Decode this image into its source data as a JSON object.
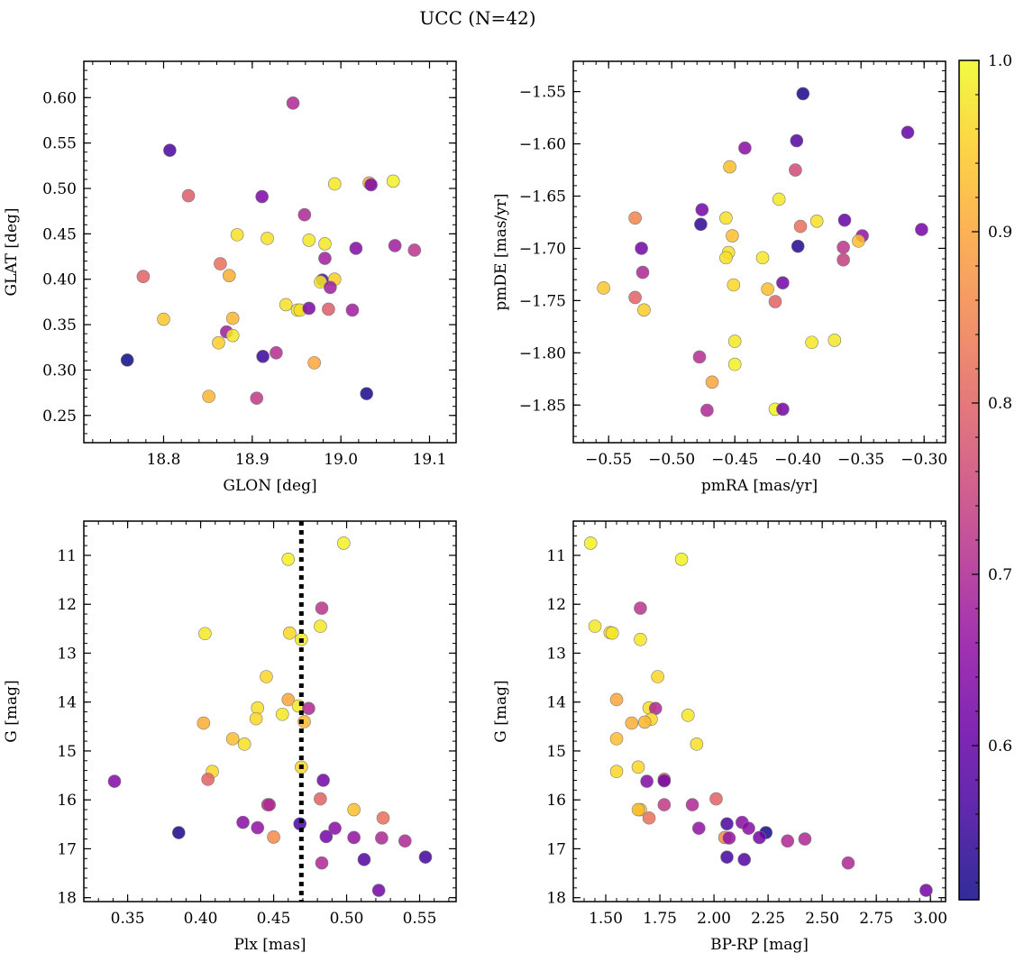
{
  "title": "UCC (N=42)",
  "colorbar": {
    "min": 0.51,
    "max": 1.0,
    "ticks": [
      0.6,
      0.7,
      0.8,
      0.9,
      1.0
    ],
    "tick_labels": [
      "0.6",
      "0.7",
      "0.8",
      "0.9",
      "1.0"
    ],
    "colormap": "plasma"
  },
  "chart_data": [
    {
      "type": "scatter",
      "xlabel": "GLON [deg]",
      "ylabel": "GLAT [deg]",
      "xlim": [
        18.71,
        19.13
      ],
      "ylim": [
        0.22,
        0.64
      ],
      "xticks": [
        18.8,
        18.9,
        19.0,
        19.1
      ],
      "xtick_labels": [
        "18.8",
        "18.9",
        "19.0",
        "19.1"
      ],
      "yticks": [
        0.25,
        0.3,
        0.35,
        0.4,
        0.45,
        0.5,
        0.55,
        0.6
      ],
      "ytick_labels": [
        "0.25",
        "0.30",
        "0.35",
        "0.40",
        "0.45",
        "0.50",
        "0.55",
        "0.60"
      ],
      "y_inverted": false,
      "vline": null,
      "points": [
        {
          "x": 18.946,
          "y": 0.594,
          "c": 0.7
        },
        {
          "x": 18.807,
          "y": 0.542,
          "c": 0.57
        },
        {
          "x": 18.828,
          "y": 0.492,
          "c": 0.79
        },
        {
          "x": 18.911,
          "y": 0.491,
          "c": 0.63
        },
        {
          "x": 18.993,
          "y": 0.505,
          "c": 0.98
        },
        {
          "x": 19.032,
          "y": 0.506,
          "c": 0.9
        },
        {
          "x": 19.034,
          "y": 0.504,
          "c": 0.63
        },
        {
          "x": 19.059,
          "y": 0.508,
          "c": 0.99
        },
        {
          "x": 18.959,
          "y": 0.471,
          "c": 0.7
        },
        {
          "x": 18.883,
          "y": 0.449,
          "c": 0.97
        },
        {
          "x": 18.917,
          "y": 0.445,
          "c": 0.97
        },
        {
          "x": 18.964,
          "y": 0.443,
          "c": 0.98
        },
        {
          "x": 18.982,
          "y": 0.439,
          "c": 0.98
        },
        {
          "x": 19.061,
          "y": 0.437,
          "c": 0.68
        },
        {
          "x": 19.083,
          "y": 0.432,
          "c": 0.72
        },
        {
          "x": 19.017,
          "y": 0.434,
          "c": 0.64
        },
        {
          "x": 18.982,
          "y": 0.423,
          "c": 0.68
        },
        {
          "x": 18.864,
          "y": 0.417,
          "c": 0.82
        },
        {
          "x": 18.777,
          "y": 0.403,
          "c": 0.8
        },
        {
          "x": 18.874,
          "y": 0.404,
          "c": 0.91
        },
        {
          "x": 18.979,
          "y": 0.399,
          "c": 0.58
        },
        {
          "x": 18.977,
          "y": 0.397,
          "c": 0.98
        },
        {
          "x": 18.993,
          "y": 0.4,
          "c": 0.95
        },
        {
          "x": 18.988,
          "y": 0.391,
          "c": 0.68
        },
        {
          "x": 18.938,
          "y": 0.372,
          "c": 0.97
        },
        {
          "x": 18.951,
          "y": 0.366,
          "c": 0.98
        },
        {
          "x": 18.954,
          "y": 0.366,
          "c": 0.97
        },
        {
          "x": 18.964,
          "y": 0.368,
          "c": 0.63
        },
        {
          "x": 18.986,
          "y": 0.367,
          "c": 0.79
        },
        {
          "x": 19.013,
          "y": 0.366,
          "c": 0.68
        },
        {
          "x": 18.8,
          "y": 0.356,
          "c": 0.94
        },
        {
          "x": 18.878,
          "y": 0.357,
          "c": 0.92
        },
        {
          "x": 18.871,
          "y": 0.342,
          "c": 0.68
        },
        {
          "x": 18.878,
          "y": 0.338,
          "c": 0.98
        },
        {
          "x": 18.862,
          "y": 0.33,
          "c": 0.95
        },
        {
          "x": 18.927,
          "y": 0.319,
          "c": 0.71
        },
        {
          "x": 18.759,
          "y": 0.311,
          "c": 0.51
        },
        {
          "x": 18.912,
          "y": 0.315,
          "c": 0.55
        },
        {
          "x": 18.97,
          "y": 0.308,
          "c": 0.9
        },
        {
          "x": 18.851,
          "y": 0.271,
          "c": 0.92
        },
        {
          "x": 18.905,
          "y": 0.269,
          "c": 0.73
        },
        {
          "x": 19.029,
          "y": 0.274,
          "c": 0.52
        }
      ]
    },
    {
      "type": "scatter",
      "xlabel": "pmRA [mas/yr]",
      "ylabel": "pmDE [mas/yr]",
      "xlim": [
        -0.578,
        -0.283
      ],
      "ylim": [
        -1.886,
        -1.521
      ],
      "xticks": [
        -0.55,
        -0.5,
        -0.45,
        -0.4,
        -0.35,
        -0.3
      ],
      "xtick_labels": [
        "−0.55",
        "−0.50",
        "−0.45",
        "−0.40",
        "−0.35",
        "−0.30"
      ],
      "yticks": [
        -1.85,
        -1.8,
        -1.75,
        -1.7,
        -1.65,
        -1.6,
        -1.55
      ],
      "ytick_labels": [
        "−1.85",
        "−1.80",
        "−1.75",
        "−1.70",
        "−1.65",
        "−1.60",
        "−1.55"
      ],
      "y_inverted": false,
      "vline": null,
      "points": [
        {
          "x": -0.396,
          "y": -1.552,
          "c": 0.52
        },
        {
          "x": -0.313,
          "y": -1.589,
          "c": 0.6
        },
        {
          "x": -0.401,
          "y": -1.597,
          "c": 0.58
        },
        {
          "x": -0.442,
          "y": -1.604,
          "c": 0.65
        },
        {
          "x": -0.454,
          "y": -1.622,
          "c": 0.93
        },
        {
          "x": -0.402,
          "y": -1.625,
          "c": 0.76
        },
        {
          "x": -0.415,
          "y": -1.653,
          "c": 0.98
        },
        {
          "x": -0.476,
          "y": -1.663,
          "c": 0.62
        },
        {
          "x": -0.529,
          "y": -1.671,
          "c": 0.85
        },
        {
          "x": -0.457,
          "y": -1.671,
          "c": 0.97
        },
        {
          "x": -0.477,
          "y": -1.677,
          "c": 0.54
        },
        {
          "x": -0.385,
          "y": -1.674,
          "c": 0.97
        },
        {
          "x": -0.363,
          "y": -1.673,
          "c": 0.6
        },
        {
          "x": -0.398,
          "y": -1.679,
          "c": 0.82
        },
        {
          "x": -0.302,
          "y": -1.682,
          "c": 0.62
        },
        {
          "x": -0.349,
          "y": -1.688,
          "c": 0.66
        },
        {
          "x": -0.352,
          "y": -1.693,
          "c": 0.93
        },
        {
          "x": -0.452,
          "y": -1.688,
          "c": 0.93
        },
        {
          "x": -0.524,
          "y": -1.7,
          "c": 0.62
        },
        {
          "x": -0.4,
          "y": -1.698,
          "c": 0.53
        },
        {
          "x": -0.364,
          "y": -1.699,
          "c": 0.72
        },
        {
          "x": -0.455,
          "y": -1.704,
          "c": 0.97
        },
        {
          "x": -0.428,
          "y": -1.709,
          "c": 0.98
        },
        {
          "x": -0.457,
          "y": -1.709,
          "c": 0.97
        },
        {
          "x": -0.364,
          "y": -1.711,
          "c": 0.74
        },
        {
          "x": -0.523,
          "y": -1.723,
          "c": 0.7
        },
        {
          "x": -0.554,
          "y": -1.738,
          "c": 0.94
        },
        {
          "x": -0.451,
          "y": -1.735,
          "c": 0.96
        },
        {
          "x": -0.412,
          "y": -1.733,
          "c": 0.62
        },
        {
          "x": -0.424,
          "y": -1.739,
          "c": 0.93
        },
        {
          "x": -0.529,
          "y": -1.747,
          "c": 0.8
        },
        {
          "x": -0.418,
          "y": -1.751,
          "c": 0.8
        },
        {
          "x": -0.522,
          "y": -1.759,
          "c": 0.95
        },
        {
          "x": -0.45,
          "y": -1.789,
          "c": 0.98
        },
        {
          "x": -0.389,
          "y": -1.79,
          "c": 0.98
        },
        {
          "x": -0.371,
          "y": -1.788,
          "c": 0.98
        },
        {
          "x": -0.478,
          "y": -1.804,
          "c": 0.71
        },
        {
          "x": -0.45,
          "y": -1.811,
          "c": 0.99
        },
        {
          "x": -0.468,
          "y": -1.828,
          "c": 0.9
        },
        {
          "x": -0.472,
          "y": -1.855,
          "c": 0.7
        },
        {
          "x": -0.418,
          "y": -1.854,
          "c": 0.99
        },
        {
          "x": -0.412,
          "y": -1.854,
          "c": 0.62
        }
      ]
    },
    {
      "type": "scatter",
      "xlabel": "Plx [mas]",
      "ylabel": "G [mag]",
      "xlim": [
        0.32,
        0.575
      ],
      "ylim": [
        18.08,
        10.3
      ],
      "xticks": [
        0.35,
        0.4,
        0.45,
        0.5,
        0.55
      ],
      "xtick_labels": [
        "0.35",
        "0.40",
        "0.45",
        "0.50",
        "0.55"
      ],
      "yticks": [
        11,
        12,
        13,
        14,
        15,
        16,
        17,
        18
      ],
      "ytick_labels": [
        "11",
        "12",
        "13",
        "14",
        "15",
        "16",
        "17",
        "18"
      ],
      "y_inverted": true,
      "vline": 0.469,
      "points": [
        {
          "x": 0.498,
          "y": 10.75,
          "c": 0.99
        },
        {
          "x": 0.46,
          "y": 11.08,
          "c": 0.99
        },
        {
          "x": 0.483,
          "y": 12.08,
          "c": 0.72
        },
        {
          "x": 0.403,
          "y": 12.6,
          "c": 0.98
        },
        {
          "x": 0.461,
          "y": 12.59,
          "c": 0.96
        },
        {
          "x": 0.469,
          "y": 12.72,
          "c": 0.98
        },
        {
          "x": 0.482,
          "y": 12.45,
          "c": 0.98
        },
        {
          "x": 0.445,
          "y": 13.48,
          "c": 0.96
        },
        {
          "x": 0.46,
          "y": 13.95,
          "c": 0.9
        },
        {
          "x": 0.467,
          "y": 14.08,
          "c": 0.98
        },
        {
          "x": 0.439,
          "y": 14.12,
          "c": 0.97
        },
        {
          "x": 0.474,
          "y": 14.13,
          "c": 0.7
        },
        {
          "x": 0.456,
          "y": 14.25,
          "c": 0.98
        },
        {
          "x": 0.438,
          "y": 14.34,
          "c": 0.96
        },
        {
          "x": 0.402,
          "y": 14.43,
          "c": 0.91
        },
        {
          "x": 0.471,
          "y": 14.4,
          "c": 0.92
        },
        {
          "x": 0.422,
          "y": 14.75,
          "c": 0.93
        },
        {
          "x": 0.43,
          "y": 14.86,
          "c": 0.97
        },
        {
          "x": 0.469,
          "y": 15.33,
          "c": 0.96
        },
        {
          "x": 0.408,
          "y": 15.42,
          "c": 0.96
        },
        {
          "x": 0.405,
          "y": 15.58,
          "c": 0.8
        },
        {
          "x": 0.341,
          "y": 15.62,
          "c": 0.64
        },
        {
          "x": 0.484,
          "y": 15.6,
          "c": 0.62
        },
        {
          "x": 0.482,
          "y": 15.98,
          "c": 0.8
        },
        {
          "x": 0.446,
          "y": 16.1,
          "c": 0.73
        },
        {
          "x": 0.505,
          "y": 16.2,
          "c": 0.93
        },
        {
          "x": 0.525,
          "y": 16.37,
          "c": 0.82
        },
        {
          "x": 0.429,
          "y": 16.46,
          "c": 0.65
        },
        {
          "x": 0.468,
          "y": 16.49,
          "c": 0.57
        },
        {
          "x": 0.439,
          "y": 16.57,
          "c": 0.66
        },
        {
          "x": 0.492,
          "y": 16.58,
          "c": 0.65
        },
        {
          "x": 0.385,
          "y": 16.67,
          "c": 0.52
        },
        {
          "x": 0.45,
          "y": 16.76,
          "c": 0.86
        },
        {
          "x": 0.486,
          "y": 16.75,
          "c": 0.62
        },
        {
          "x": 0.505,
          "y": 16.77,
          "c": 0.66
        },
        {
          "x": 0.524,
          "y": 16.78,
          "c": 0.7
        },
        {
          "x": 0.54,
          "y": 16.84,
          "c": 0.7
        },
        {
          "x": 0.554,
          "y": 17.17,
          "c": 0.56
        },
        {
          "x": 0.512,
          "y": 17.22,
          "c": 0.58
        },
        {
          "x": 0.483,
          "y": 17.29,
          "c": 0.7
        },
        {
          "x": 0.522,
          "y": 17.85,
          "c": 0.62
        },
        {
          "x": 0.447,
          "y": 16.1,
          "c": 0.7
        }
      ]
    },
    {
      "type": "scatter",
      "xlabel": "BP-RP [mag]",
      "ylabel": "G [mag]",
      "xlim": [
        1.35,
        3.07
      ],
      "ylim": [
        18.08,
        10.3
      ],
      "xticks": [
        1.5,
        1.75,
        2.0,
        2.25,
        2.5,
        2.75,
        3.0
      ],
      "xtick_labels": [
        "1.50",
        "1.75",
        "2.00",
        "2.25",
        "2.50",
        "2.75",
        "3.00"
      ],
      "yticks": [
        11,
        12,
        13,
        14,
        15,
        16,
        17,
        18
      ],
      "ytick_labels": [
        "11",
        "12",
        "13",
        "14",
        "15",
        "16",
        "17",
        "18"
      ],
      "y_inverted": true,
      "vline": null,
      "points": [
        {
          "x": 1.43,
          "y": 10.75,
          "c": 0.99
        },
        {
          "x": 1.85,
          "y": 11.08,
          "c": 0.99
        },
        {
          "x": 1.66,
          "y": 12.08,
          "c": 0.72
        },
        {
          "x": 1.45,
          "y": 12.45,
          "c": 0.98
        },
        {
          "x": 1.52,
          "y": 12.58,
          "c": 0.96
        },
        {
          "x": 1.53,
          "y": 12.59,
          "c": 0.98
        },
        {
          "x": 1.66,
          "y": 12.72,
          "c": 0.98
        },
        {
          "x": 1.74,
          "y": 13.48,
          "c": 0.96
        },
        {
          "x": 1.55,
          "y": 13.95,
          "c": 0.9
        },
        {
          "x": 1.7,
          "y": 14.12,
          "c": 0.97
        },
        {
          "x": 1.73,
          "y": 14.13,
          "c": 0.7
        },
        {
          "x": 1.88,
          "y": 14.27,
          "c": 0.98
        },
        {
          "x": 1.71,
          "y": 14.35,
          "c": 0.96
        },
        {
          "x": 1.62,
          "y": 14.43,
          "c": 0.91
        },
        {
          "x": 1.68,
          "y": 14.41,
          "c": 0.92
        },
        {
          "x": 1.55,
          "y": 14.75,
          "c": 0.93
        },
        {
          "x": 1.92,
          "y": 14.86,
          "c": 0.97
        },
        {
          "x": 1.65,
          "y": 15.33,
          "c": 0.96
        },
        {
          "x": 1.55,
          "y": 15.42,
          "c": 0.96
        },
        {
          "x": 1.69,
          "y": 15.62,
          "c": 0.64
        },
        {
          "x": 1.77,
          "y": 15.58,
          "c": 0.8
        },
        {
          "x": 1.77,
          "y": 15.61,
          "c": 0.62
        },
        {
          "x": 2.01,
          "y": 15.98,
          "c": 0.8
        },
        {
          "x": 1.77,
          "y": 16.1,
          "c": 0.73
        },
        {
          "x": 1.9,
          "y": 16.1,
          "c": 0.7
        },
        {
          "x": 1.66,
          "y": 16.2,
          "c": 0.93
        },
        {
          "x": 1.7,
          "y": 16.37,
          "c": 0.82
        },
        {
          "x": 2.06,
          "y": 16.49,
          "c": 0.57
        },
        {
          "x": 2.13,
          "y": 16.46,
          "c": 0.65
        },
        {
          "x": 1.93,
          "y": 16.58,
          "c": 0.66
        },
        {
          "x": 2.16,
          "y": 16.58,
          "c": 0.65
        },
        {
          "x": 2.24,
          "y": 16.67,
          "c": 0.52
        },
        {
          "x": 2.05,
          "y": 16.77,
          "c": 0.86
        },
        {
          "x": 2.07,
          "y": 16.78,
          "c": 0.66
        },
        {
          "x": 2.21,
          "y": 16.77,
          "c": 0.62
        },
        {
          "x": 2.42,
          "y": 16.8,
          "c": 0.7
        },
        {
          "x": 2.34,
          "y": 16.84,
          "c": 0.7
        },
        {
          "x": 2.06,
          "y": 17.17,
          "c": 0.56
        },
        {
          "x": 2.14,
          "y": 17.22,
          "c": 0.58
        },
        {
          "x": 2.62,
          "y": 17.29,
          "c": 0.7
        },
        {
          "x": 2.98,
          "y": 17.85,
          "c": 0.62
        },
        {
          "x": 1.65,
          "y": 16.2,
          "c": 0.93
        }
      ]
    }
  ]
}
